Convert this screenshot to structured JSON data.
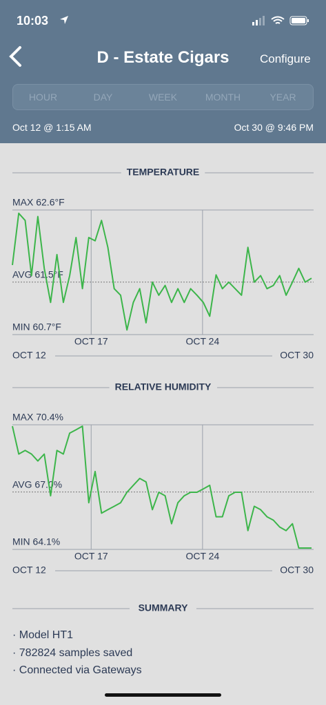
{
  "status_bar": {
    "time": "10:03"
  },
  "header": {
    "title": "D - Estate Cigars",
    "action": "Configure"
  },
  "tabs": [
    "HOUR",
    "DAY",
    "WEEK",
    "MONTH",
    "YEAR"
  ],
  "date_range": {
    "start": "Oct 12 @ 1:15 AM",
    "end": "Oct 30 @ 9:46 PM"
  },
  "chart_data": [
    {
      "type": "line",
      "title": "TEMPERATURE",
      "x": [
        12.05,
        12.45,
        12.85,
        13.25,
        13.65,
        14.05,
        14.45,
        14.85,
        15.25,
        15.65,
        16.05,
        16.45,
        16.85,
        17.25,
        17.65,
        18.05,
        18.45,
        18.85,
        19.25,
        19.65,
        20.05,
        20.45,
        20.85,
        21.25,
        21.65,
        22.05,
        22.45,
        22.85,
        23.25,
        23.65,
        24.05,
        24.45,
        24.85,
        25.25,
        25.65,
        26.05,
        26.45,
        26.85,
        27.25,
        27.65,
        28.05,
        28.45,
        28.85,
        29.25,
        29.65,
        30.05,
        30.45,
        30.85
      ],
      "series": [
        {
          "color": "#3cb54a",
          "values": [
            61.76,
            62.55,
            62.44,
            61.6,
            62.5,
            61.71,
            61.19,
            61.92,
            61.19,
            61.6,
            62.18,
            61.4,
            62.18,
            62.13,
            62.44,
            62.03,
            61.4,
            61.3,
            60.77,
            61.19,
            61.4,
            60.88,
            61.5,
            61.3,
            61.45,
            61.19,
            61.4,
            61.19,
            61.4,
            61.3,
            61.19,
            60.98,
            61.61,
            61.4,
            61.5,
            61.4,
            61.3,
            62.03,
            61.5,
            61.6,
            61.4,
            61.45,
            61.6,
            61.3,
            61.5,
            61.71,
            61.5,
            61.56
          ]
        }
      ],
      "xlim": [
        12.05,
        30.85
      ],
      "ylim": [
        60.7,
        62.6
      ],
      "yticks": [
        {
          "value": 60.7,
          "label": "MIN 60.7°F"
        },
        {
          "value": 61.5,
          "label": "AVG 61.5°F"
        },
        {
          "value": 62.6,
          "label": "MAX 62.6°F"
        }
      ],
      "xticks": [
        {
          "value": 17,
          "label": "OCT 17"
        },
        {
          "value": 24,
          "label": "OCT 24"
        }
      ],
      "range_labels": [
        "OCT 12",
        "OCT 30"
      ]
    },
    {
      "type": "line",
      "title": "RELATIVE HUMIDITY",
      "x": [
        12.05,
        12.45,
        12.85,
        13.25,
        13.65,
        14.05,
        14.45,
        14.85,
        15.25,
        15.65,
        16.05,
        16.45,
        16.85,
        17.25,
        17.65,
        18.05,
        18.45,
        18.85,
        19.25,
        19.65,
        20.05,
        20.45,
        20.85,
        21.25,
        21.65,
        22.05,
        22.45,
        22.85,
        23.25,
        23.65,
        24.05,
        24.45,
        24.85,
        25.25,
        25.65,
        26.05,
        26.45,
        26.85,
        27.25,
        27.65,
        28.05,
        28.45,
        28.85,
        29.25,
        29.65,
        30.05,
        30.45,
        30.85
      ],
      "series": [
        {
          "color": "#3cb54a",
          "values": [
            70.33,
            68.92,
            69.1,
            68.92,
            68.57,
            68.92,
            66.81,
            69.1,
            68.92,
            69.98,
            70.15,
            70.33,
            66.46,
            68.04,
            65.93,
            66.11,
            66.28,
            66.46,
            66.99,
            67.34,
            67.69,
            67.51,
            66.11,
            66.99,
            66.81,
            65.4,
            66.46,
            66.81,
            66.99,
            66.99,
            67.16,
            67.34,
            65.75,
            65.75,
            66.81,
            66.99,
            66.99,
            65.05,
            66.28,
            66.11,
            65.75,
            65.58,
            65.23,
            65.05,
            65.4,
            64.17,
            64.17,
            64.17
          ]
        }
      ],
      "xlim": [
        12.05,
        30.85
      ],
      "ylim": [
        64.1,
        70.4
      ],
      "yticks": [
        {
          "value": 64.1,
          "label": "MIN 64.1%"
        },
        {
          "value": 67.0,
          "label": "AVG 67.0%"
        },
        {
          "value": 70.4,
          "label": "MAX 70.4%"
        }
      ],
      "xticks": [
        {
          "value": 17,
          "label": "OCT 17"
        },
        {
          "value": 24,
          "label": "OCT 24"
        }
      ],
      "range_labels": [
        "OCT 12",
        "OCT 30"
      ]
    }
  ],
  "summary": {
    "title": "SUMMARY",
    "items": [
      "· Model HT1",
      "· 782824 samples saved",
      "· Connected via Gateways"
    ]
  }
}
